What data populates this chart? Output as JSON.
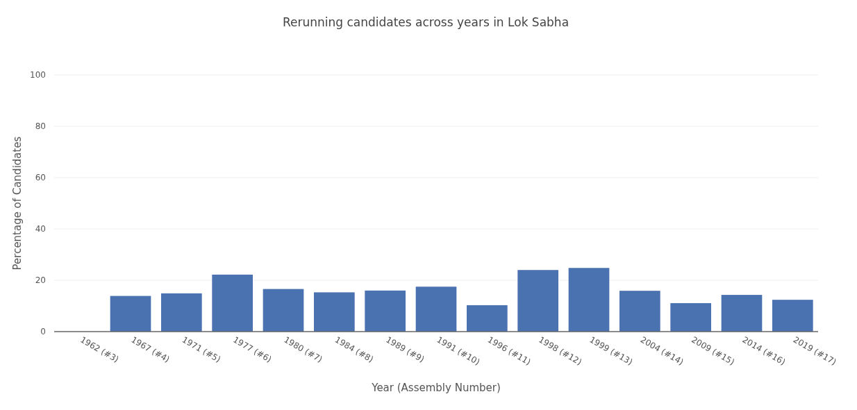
{
  "chart_data": {
    "type": "bar",
    "title": "Rerunning candidates across years in Lok Sabha",
    "xlabel": "Year (Assembly Number)",
    "ylabel": "Percentage of Candidates",
    "categories": [
      "1962 (#3)",
      "1967 (#4)",
      "1971 (#5)",
      "1977 (#6)",
      "1980 (#7)",
      "1984 (#8)",
      "1989 (#9)",
      "1991 (#10)",
      "1996 (#11)",
      "1998 (#12)",
      "1999 (#13)",
      "2004 (#14)",
      "2009 (#15)",
      "2014 (#16)",
      "2019 (#17)"
    ],
    "values": [
      0,
      13.9,
      14.9,
      22.2,
      16.6,
      15.3,
      16.0,
      17.5,
      10.3,
      24.0,
      24.8,
      15.9,
      11.1,
      14.3,
      12.4
    ],
    "color": "#4a72b0",
    "ylim": [
      0,
      100
    ],
    "yticks": [
      0,
      20,
      40,
      60,
      80,
      100
    ],
    "grid": "y"
  }
}
